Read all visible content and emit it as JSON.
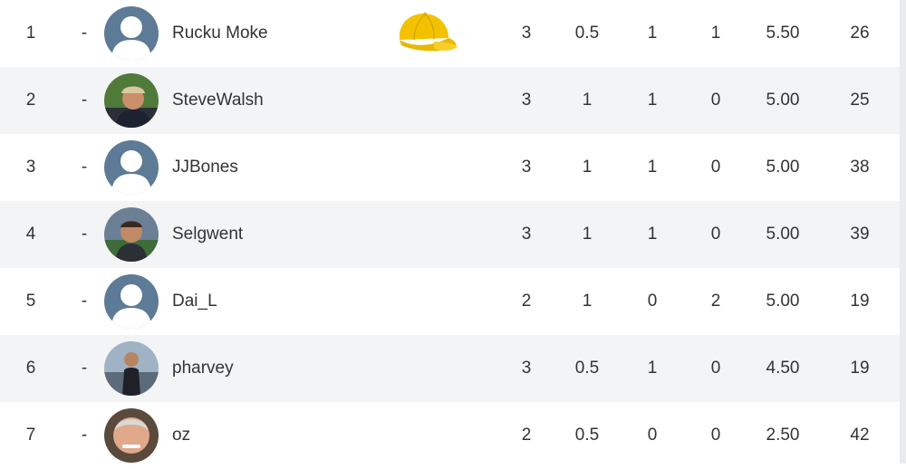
{
  "leaderboard": {
    "rows": [
      {
        "rank": "1",
        "movement": "-",
        "avatar": "default-avatar-icon",
        "name": "Rucku Moke",
        "badge": "yellow-cap-icon",
        "c1": "3",
        "c2": "0.5",
        "c3": "1",
        "c4": "1",
        "c5": "5.50",
        "c6": "26"
      },
      {
        "rank": "2",
        "movement": "-",
        "avatar": "photo-avatar",
        "name": "SteveWalsh",
        "c1": "3",
        "c2": "1",
        "c3": "1",
        "c4": "0",
        "c5": "5.00",
        "c6": "25"
      },
      {
        "rank": "3",
        "movement": "-",
        "avatar": "default-avatar-icon",
        "name": "JJBones",
        "c1": "3",
        "c2": "1",
        "c3": "1",
        "c4": "0",
        "c5": "5.00",
        "c6": "38"
      },
      {
        "rank": "4",
        "movement": "-",
        "avatar": "photo-avatar",
        "name": "Selgwent",
        "c1": "3",
        "c2": "1",
        "c3": "1",
        "c4": "0",
        "c5": "5.00",
        "c6": "39"
      },
      {
        "rank": "5",
        "movement": "-",
        "avatar": "default-avatar-icon",
        "name": "Dai_L",
        "c1": "2",
        "c2": "1",
        "c3": "0",
        "c4": "2",
        "c5": "5.00",
        "c6": "19"
      },
      {
        "rank": "6",
        "movement": "-",
        "avatar": "photo-avatar",
        "name": "pharvey",
        "c1": "3",
        "c2": "0.5",
        "c3": "1",
        "c4": "0",
        "c5": "4.50",
        "c6": "19"
      },
      {
        "rank": "7",
        "movement": "-",
        "avatar": "photo-avatar",
        "name": "oz",
        "c1": "2",
        "c2": "0.5",
        "c3": "0",
        "c4": "0",
        "c5": "2.50",
        "c6": "42"
      }
    ]
  },
  "colors": {
    "default_avatar": "#5d7a97",
    "row_alt": "#f3f4f6",
    "cap": "#f2c200",
    "text": "#333333"
  }
}
